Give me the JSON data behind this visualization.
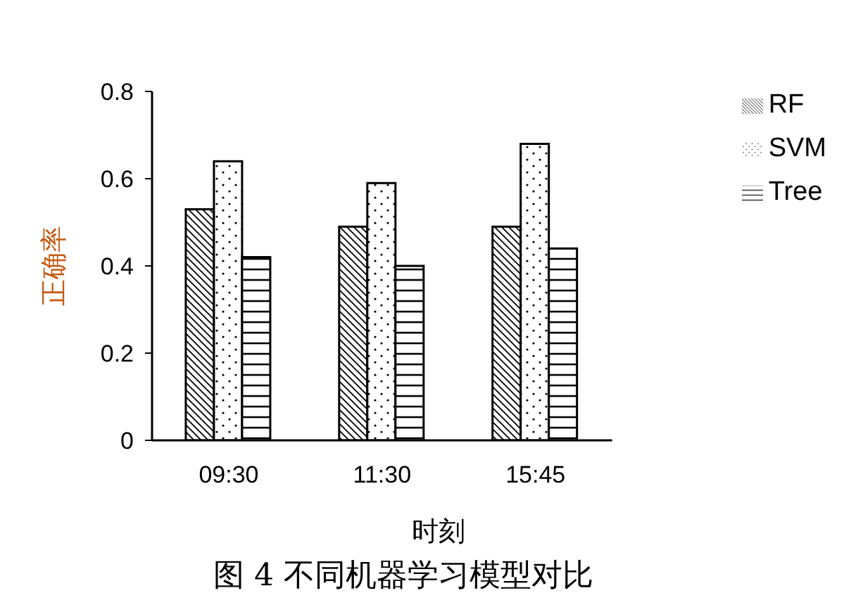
{
  "chart_data": {
    "type": "bar",
    "title": "图 4 不同机器学习模型对比",
    "xlabel": "时刻",
    "ylabel": "正确率",
    "categories": [
      "09:30",
      "11:30",
      "15:45"
    ],
    "series": [
      {
        "name": "RF",
        "color": "#000000",
        "values": [
          0.53,
          0.49,
          0.49
        ]
      },
      {
        "name": "SVM",
        "color": "#000000",
        "values": [
          0.64,
          0.59,
          0.68
        ]
      },
      {
        "name": "Tree",
        "color": "#000000",
        "values": [
          0.42,
          0.4,
          0.44
        ]
      }
    ],
    "ylim": [
      0,
      0.8
    ],
    "yticks": [
      0,
      0.2,
      0.4,
      0.6,
      0.8
    ],
    "grid": false,
    "legend": "top right"
  }
}
